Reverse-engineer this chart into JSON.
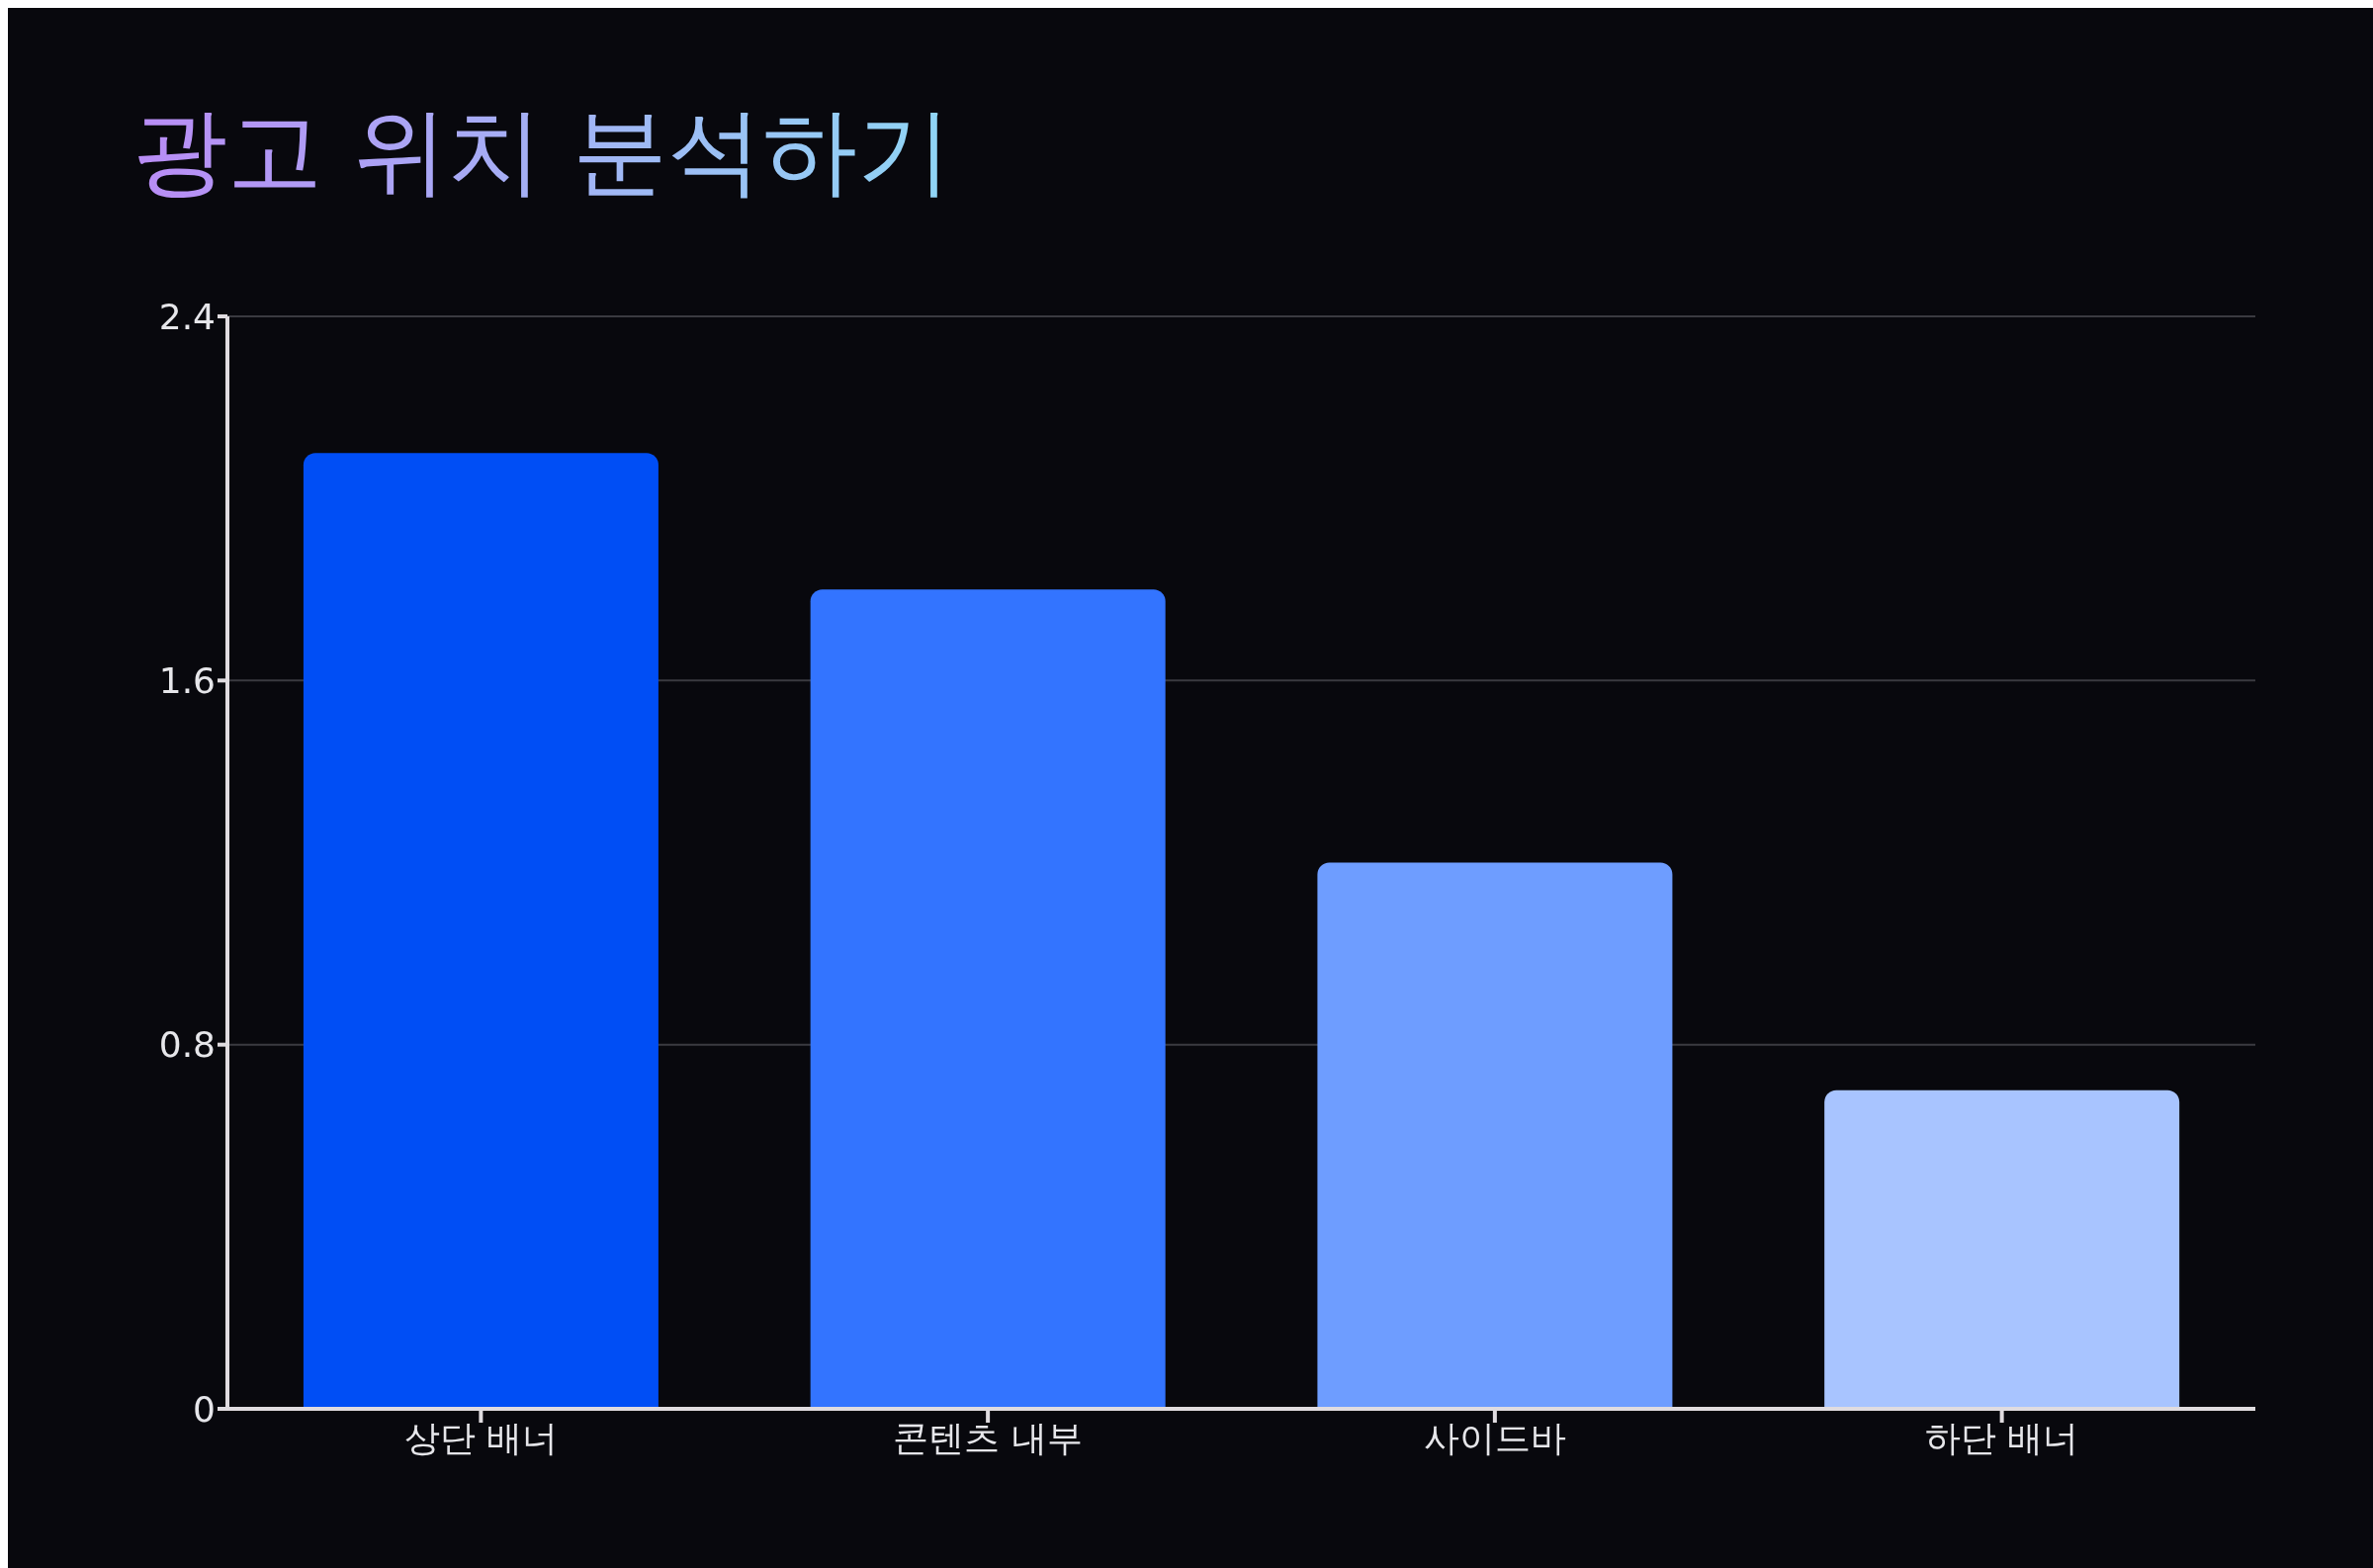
{
  "chart_data": {
    "type": "bar",
    "title": "광고 위치 분석하기",
    "categories": [
      "상단 배너",
      "콘텐츠 내부",
      "사이드바",
      "하단 배너"
    ],
    "values": [
      2.1,
      1.8,
      1.2,
      0.7
    ],
    "colors": [
      "#004ef5",
      "#3374ff",
      "#6e9dff",
      "#a8c4ff"
    ],
    "ylim": [
      0,
      2.4
    ],
    "yticks": [
      0,
      0.8,
      1.6,
      2.4
    ],
    "grid": "y"
  }
}
